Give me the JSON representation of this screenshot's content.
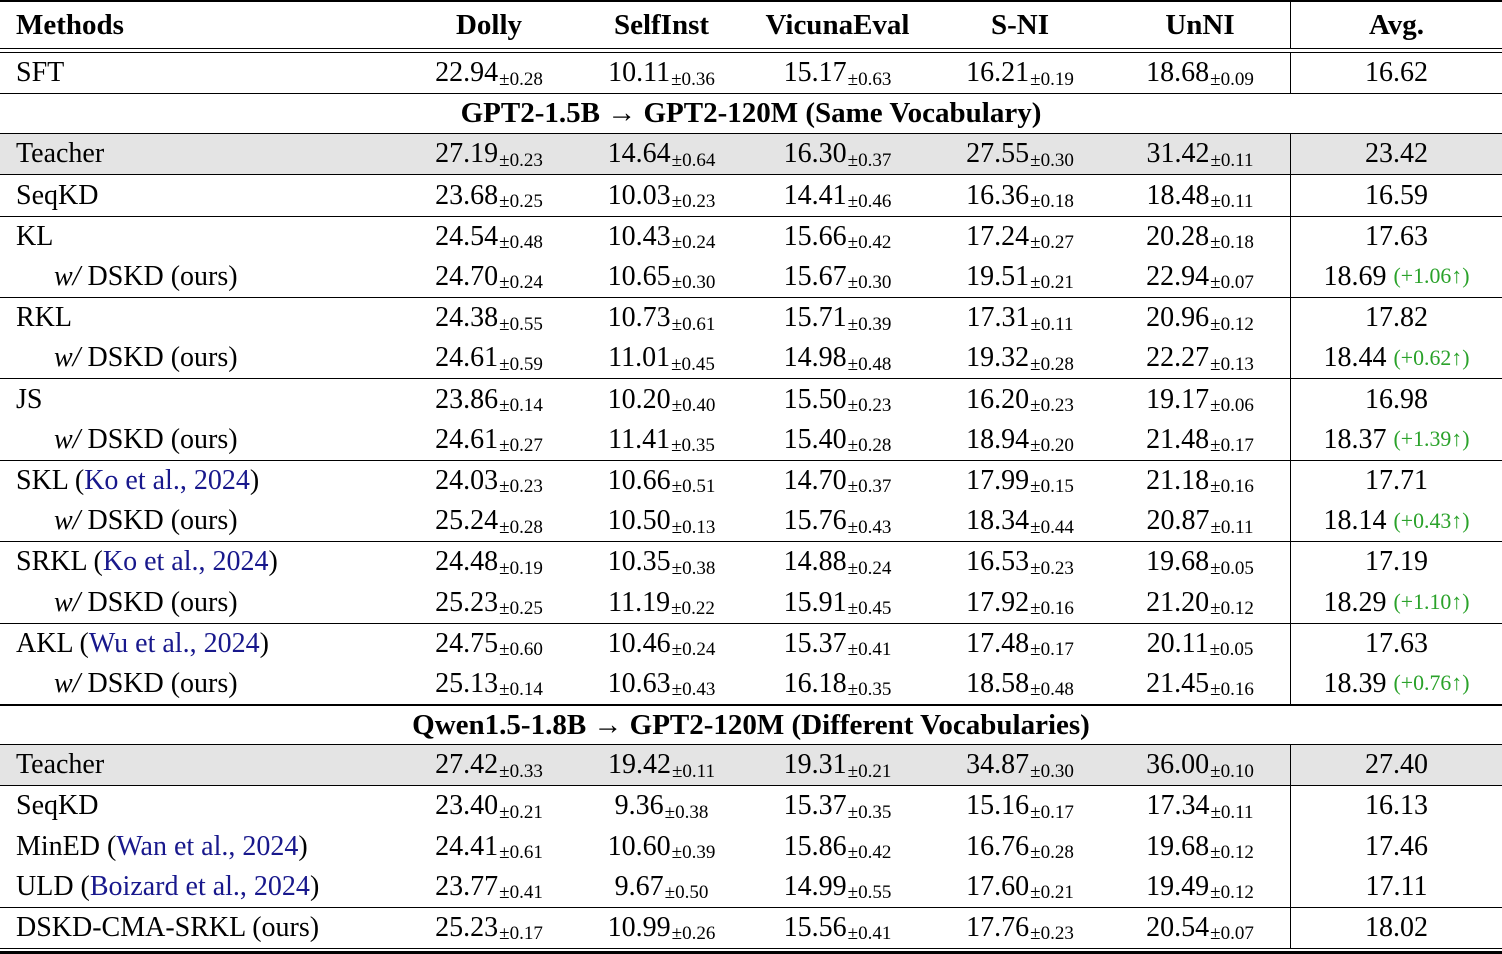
{
  "table": {
    "colors": {
      "citation": "#18188c",
      "gain": "#2aa22a",
      "shaded_row": "#e4e4e4"
    },
    "columns": [
      "Methods",
      "Dolly",
      "SelfInst",
      "VicunaEval",
      "S-NI",
      "UnNI",
      "Avg."
    ],
    "rows": [
      {
        "type": "data",
        "rule_above": 0,
        "method": {
          "text": "SFT"
        },
        "values": [
          [
            "22.94",
            "0.28"
          ],
          [
            "10.11",
            "0.36"
          ],
          [
            "15.17",
            "0.63"
          ],
          [
            "16.21",
            "0.19"
          ],
          [
            "18.68",
            "0.09"
          ]
        ],
        "avg": "16.62"
      },
      {
        "type": "section",
        "rule_above": 1,
        "label": "GPT2-1.5B → GPT2-120M (Same Vocabulary)"
      },
      {
        "type": "data",
        "rule_above": 1,
        "shaded": true,
        "method": {
          "text": "Teacher"
        },
        "values": [
          [
            "27.19",
            "0.23"
          ],
          [
            "14.64",
            "0.64"
          ],
          [
            "16.30",
            "0.37"
          ],
          [
            "27.55",
            "0.30"
          ],
          [
            "31.42",
            "0.11"
          ]
        ],
        "avg": "23.42"
      },
      {
        "type": "data",
        "rule_above": 1,
        "method": {
          "text": "SeqKD"
        },
        "values": [
          [
            "23.68",
            "0.25"
          ],
          [
            "10.03",
            "0.23"
          ],
          [
            "14.41",
            "0.46"
          ],
          [
            "16.36",
            "0.18"
          ],
          [
            "18.48",
            "0.11"
          ]
        ],
        "avg": "16.59"
      },
      {
        "type": "data",
        "rule_above": 1,
        "method": {
          "text": "KL"
        },
        "values": [
          [
            "24.54",
            "0.48"
          ],
          [
            "10.43",
            "0.24"
          ],
          [
            "15.66",
            "0.42"
          ],
          [
            "17.24",
            "0.27"
          ],
          [
            "20.28",
            "0.18"
          ]
        ],
        "avg": "17.63"
      },
      {
        "type": "data",
        "rule_above": 0,
        "method": {
          "indent": true,
          "italic": "w/",
          "text": "DSKD (ours)"
        },
        "values": [
          [
            "24.70",
            "0.24"
          ],
          [
            "10.65",
            "0.30"
          ],
          [
            "15.67",
            "0.30"
          ],
          [
            "19.51",
            "0.21"
          ],
          [
            "22.94",
            "0.07"
          ]
        ],
        "avg": "18.69",
        "gain": "(+1.06↑)"
      },
      {
        "type": "data",
        "rule_above": 1,
        "method": {
          "text": "RKL"
        },
        "values": [
          [
            "24.38",
            "0.55"
          ],
          [
            "10.73",
            "0.61"
          ],
          [
            "15.71",
            "0.39"
          ],
          [
            "17.31",
            "0.11"
          ],
          [
            "20.96",
            "0.12"
          ]
        ],
        "avg": "17.82"
      },
      {
        "type": "data",
        "rule_above": 0,
        "method": {
          "indent": true,
          "italic": "w/",
          "text": "DSKD (ours)"
        },
        "values": [
          [
            "24.61",
            "0.59"
          ],
          [
            "11.01",
            "0.45"
          ],
          [
            "14.98",
            "0.48"
          ],
          [
            "19.32",
            "0.28"
          ],
          [
            "22.27",
            "0.13"
          ]
        ],
        "avg": "18.44",
        "gain": "(+0.62↑)"
      },
      {
        "type": "data",
        "rule_above": 1,
        "method": {
          "text": "JS"
        },
        "values": [
          [
            "23.86",
            "0.14"
          ],
          [
            "10.20",
            "0.40"
          ],
          [
            "15.50",
            "0.23"
          ],
          [
            "16.20",
            "0.23"
          ],
          [
            "19.17",
            "0.06"
          ]
        ],
        "avg": "16.98"
      },
      {
        "type": "data",
        "rule_above": 0,
        "method": {
          "indent": true,
          "italic": "w/",
          "text": "DSKD (ours)"
        },
        "values": [
          [
            "24.61",
            "0.27"
          ],
          [
            "11.41",
            "0.35"
          ],
          [
            "15.40",
            "0.28"
          ],
          [
            "18.94",
            "0.20"
          ],
          [
            "21.48",
            "0.17"
          ]
        ],
        "avg": "18.37",
        "gain": "(+1.39↑)"
      },
      {
        "type": "data",
        "rule_above": 1,
        "method": {
          "text": "SKL (",
          "citation": "Ko et al., 2024",
          "suffix": ")"
        },
        "values": [
          [
            "24.03",
            "0.23"
          ],
          [
            "10.66",
            "0.51"
          ],
          [
            "14.70",
            "0.37"
          ],
          [
            "17.99",
            "0.15"
          ],
          [
            "21.18",
            "0.16"
          ]
        ],
        "avg": "17.71"
      },
      {
        "type": "data",
        "rule_above": 0,
        "method": {
          "indent": true,
          "italic": "w/",
          "text": "DSKD (ours)"
        },
        "values": [
          [
            "25.24",
            "0.28"
          ],
          [
            "10.50",
            "0.13"
          ],
          [
            "15.76",
            "0.43"
          ],
          [
            "18.34",
            "0.44"
          ],
          [
            "20.87",
            "0.11"
          ]
        ],
        "avg": "18.14",
        "gain": "(+0.43↑)"
      },
      {
        "type": "data",
        "rule_above": 1,
        "method": {
          "text": "SRKL (",
          "citation": "Ko et al., 2024",
          "suffix": ")"
        },
        "values": [
          [
            "24.48",
            "0.19"
          ],
          [
            "10.35",
            "0.38"
          ],
          [
            "14.88",
            "0.24"
          ],
          [
            "16.53",
            "0.23"
          ],
          [
            "19.68",
            "0.05"
          ]
        ],
        "avg": "17.19"
      },
      {
        "type": "data",
        "rule_above": 0,
        "method": {
          "indent": true,
          "italic": "w/",
          "text": "DSKD (ours)"
        },
        "values": [
          [
            "25.23",
            "0.25"
          ],
          [
            "11.19",
            "0.22"
          ],
          [
            "15.91",
            "0.45"
          ],
          [
            "17.92",
            "0.16"
          ],
          [
            "21.20",
            "0.12"
          ]
        ],
        "avg": "18.29",
        "gain": "(+1.10↑)"
      },
      {
        "type": "data",
        "rule_above": 1,
        "method": {
          "text": "AKL (",
          "citation": "Wu et al., 2024",
          "suffix": ")"
        },
        "values": [
          [
            "24.75",
            "0.60"
          ],
          [
            "10.46",
            "0.24"
          ],
          [
            "15.37",
            "0.41"
          ],
          [
            "17.48",
            "0.17"
          ],
          [
            "20.11",
            "0.05"
          ]
        ],
        "avg": "17.63"
      },
      {
        "type": "data",
        "rule_above": 0,
        "method": {
          "indent": true,
          "italic": "w/",
          "text": "DSKD (ours)"
        },
        "values": [
          [
            "25.13",
            "0.14"
          ],
          [
            "10.63",
            "0.43"
          ],
          [
            "16.18",
            "0.35"
          ],
          [
            "18.58",
            "0.48"
          ],
          [
            "21.45",
            "0.16"
          ]
        ],
        "avg": "18.39",
        "gain": "(+0.76↑)"
      },
      {
        "type": "section",
        "rule_above": 2,
        "label": "Qwen1.5-1.8B → GPT2-120M (Different Vocabularies)"
      },
      {
        "type": "data",
        "rule_above": 1,
        "shaded": true,
        "method": {
          "text": "Teacher"
        },
        "values": [
          [
            "27.42",
            "0.33"
          ],
          [
            "19.42",
            "0.11"
          ],
          [
            "19.31",
            "0.21"
          ],
          [
            "34.87",
            "0.30"
          ],
          [
            "36.00",
            "0.10"
          ]
        ],
        "avg": "27.40"
      },
      {
        "type": "data",
        "rule_above": 1,
        "method": {
          "text": "SeqKD"
        },
        "values": [
          [
            "23.40",
            "0.21"
          ],
          [
            "9.36",
            "0.38"
          ],
          [
            "15.37",
            "0.35"
          ],
          [
            "15.16",
            "0.17"
          ],
          [
            "17.34",
            "0.11"
          ]
        ],
        "avg": "16.13"
      },
      {
        "type": "data",
        "rule_above": 0,
        "method": {
          "text": "MinED (",
          "citation": "Wan et al., 2024",
          "suffix": ")"
        },
        "values": [
          [
            "24.41",
            "0.61"
          ],
          [
            "10.60",
            "0.39"
          ],
          [
            "15.86",
            "0.42"
          ],
          [
            "16.76",
            "0.28"
          ],
          [
            "19.68",
            "0.12"
          ]
        ],
        "avg": "17.46"
      },
      {
        "type": "data",
        "rule_above": 0,
        "method": {
          "text": "ULD (",
          "citation": "Boizard et al., 2024",
          "suffix": ")"
        },
        "values": [
          [
            "23.77",
            "0.41"
          ],
          [
            "9.67",
            "0.50"
          ],
          [
            "14.99",
            "0.55"
          ],
          [
            "17.60",
            "0.21"
          ],
          [
            "19.49",
            "0.12"
          ]
        ],
        "avg": "17.11"
      },
      {
        "type": "data",
        "rule_above": 1,
        "method": {
          "text": "DSKD-CMA-SRKL (ours)"
        },
        "values": [
          [
            "25.23",
            "0.17"
          ],
          [
            "10.99",
            "0.26"
          ],
          [
            "15.56",
            "0.41"
          ],
          [
            "17.76",
            "0.23"
          ],
          [
            "20.54",
            "0.07"
          ]
        ],
        "avg": "18.02"
      }
    ]
  }
}
